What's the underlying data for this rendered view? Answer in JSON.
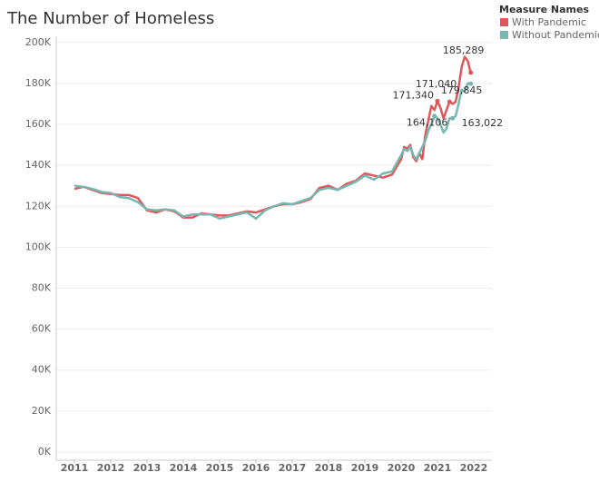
{
  "chart_data": {
    "type": "line",
    "title": "The Number of Homeless",
    "legend_title": "Measure Names",
    "legend_position": "top-right",
    "grid": true,
    "x": [
      2011,
      2011.25,
      2011.5,
      2011.75,
      2012,
      2012.25,
      2012.5,
      2012.75,
      2013,
      2013.25,
      2013.5,
      2013.75,
      2014,
      2014.25,
      2014.5,
      2014.75,
      2015,
      2015.25,
      2015.5,
      2015.75,
      2016,
      2016.25,
      2016.5,
      2016.75,
      2017,
      2017.25,
      2017.5,
      2017.75,
      2018,
      2018.25,
      2018.5,
      2018.75,
      2019,
      2019.25,
      2019.5,
      2019.75,
      2020,
      2020.083,
      2020.167,
      2020.25,
      2020.333,
      2020.417,
      2020.5,
      2020.583,
      2020.667,
      2020.75,
      2020.833,
      2020.917,
      2021,
      2021.083,
      2021.167,
      2021.25,
      2021.333,
      2021.417,
      2021.5,
      2021.583,
      2021.667,
      2021.75,
      2021.833,
      2021.917
    ],
    "xlim": [
      2010.5,
      2022.5
    ],
    "xticks": [
      2011,
      2012,
      2013,
      2014,
      2015,
      2016,
      2017,
      2018,
      2019,
      2020,
      2021,
      2022
    ],
    "ylim": [
      -4000,
      203000
    ],
    "yticks": [
      {
        "value": 0,
        "label": "0K"
      },
      {
        "value": 20000,
        "label": "20K"
      },
      {
        "value": 40000,
        "label": "40K"
      },
      {
        "value": 60000,
        "label": "60K"
      },
      {
        "value": 80000,
        "label": "80K"
      },
      {
        "value": 100000,
        "label": "100K"
      },
      {
        "value": 120000,
        "label": "120K"
      },
      {
        "value": 140000,
        "label": "140K"
      },
      {
        "value": 160000,
        "label": "160K"
      },
      {
        "value": 180000,
        "label": "180K"
      },
      {
        "value": 200000,
        "label": "200K"
      }
    ],
    "series": [
      {
        "name": "With Pandemic",
        "color": "#e15759",
        "values": [
          128500,
          129500,
          128000,
          126500,
          126000,
          125500,
          125500,
          124000,
          118000,
          117000,
          118500,
          117500,
          114500,
          114500,
          116500,
          116000,
          115500,
          115500,
          116500,
          117500,
          117000,
          118500,
          120000,
          121000,
          121000,
          122000,
          123500,
          129000,
          130000,
          128000,
          131000,
          132500,
          136000,
          135000,
          134000,
          135500,
          143000,
          149000,
          148000,
          150000,
          144000,
          142000,
          146000,
          143000,
          155000,
          162000,
          169000,
          167000,
          171340,
          168000,
          163000,
          167000,
          171040,
          170000,
          171000,
          178000,
          188000,
          193000,
          191000,
          185289
        ],
        "value_labels": [
          null,
          null,
          null,
          null,
          null,
          null,
          null,
          null,
          null,
          null,
          null,
          null,
          null,
          null,
          null,
          null,
          null,
          null,
          null,
          null,
          null,
          null,
          null,
          null,
          null,
          null,
          null,
          null,
          null,
          null,
          null,
          null,
          null,
          null,
          null,
          null,
          null,
          null,
          null,
          null,
          null,
          null,
          null,
          null,
          null,
          null,
          null,
          null,
          "171,340",
          null,
          null,
          null,
          "171,040",
          null,
          null,
          null,
          null,
          null,
          null,
          "185,289"
        ]
      },
      {
        "name": "Without Pandemic",
        "color": "#76b7b2",
        "values": [
          130000,
          129500,
          128500,
          127000,
          126500,
          124500,
          124000,
          122000,
          118500,
          118000,
          118500,
          118000,
          115000,
          116000,
          116000,
          116000,
          114000,
          115000,
          116000,
          117000,
          114000,
          118000,
          120000,
          121500,
          121000,
          122500,
          124000,
          128000,
          129000,
          128000,
          130000,
          132000,
          135000,
          133000,
          136000,
          137000,
          145000,
          148000,
          147000,
          149000,
          145000,
          143000,
          146000,
          149000,
          152000,
          157000,
          160000,
          164106,
          163000,
          160000,
          156000,
          158000,
          163000,
          163022,
          164000,
          170000,
          177000,
          176000,
          180000,
          179845
        ],
        "value_labels": [
          null,
          null,
          null,
          null,
          null,
          null,
          null,
          null,
          null,
          null,
          null,
          null,
          null,
          null,
          null,
          null,
          null,
          null,
          null,
          null,
          null,
          null,
          null,
          null,
          null,
          null,
          null,
          null,
          null,
          null,
          null,
          null,
          null,
          null,
          null,
          null,
          null,
          null,
          null,
          null,
          null,
          null,
          null,
          null,
          null,
          null,
          null,
          "164,106",
          null,
          null,
          null,
          null,
          null,
          "163,022",
          null,
          null,
          null,
          null,
          null,
          "179,845"
        ]
      }
    ]
  }
}
